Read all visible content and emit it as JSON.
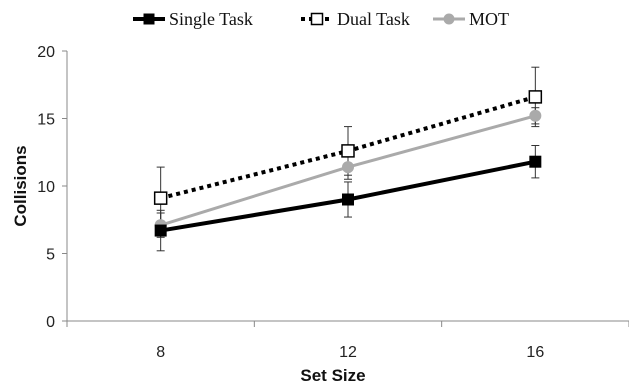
{
  "chart_data": {
    "type": "line",
    "x": [
      8,
      12,
      16
    ],
    "xlabel": "Set Size",
    "ylabel": "Collisions",
    "ylim": [
      0,
      20
    ],
    "yticks": [
      0,
      5,
      10,
      15,
      20
    ],
    "xtick_labels": [
      "8",
      "12",
      "16"
    ],
    "ytick_labels": [
      "0",
      "5",
      "10",
      "15",
      "20"
    ],
    "grid": false,
    "legend_position": "top",
    "series": [
      {
        "name": "Single Task",
        "values": [
          6.7,
          9.0,
          11.8
        ],
        "error": [
          1.5,
          1.3,
          1.2
        ],
        "color": "#000000",
        "line_style": "solid",
        "marker": "filled-square"
      },
      {
        "name": "Dual Task",
        "values": [
          9.1,
          12.6,
          16.6
        ],
        "error": [
          2.3,
          1.8,
          2.2
        ],
        "color": "#000000",
        "line_style": "dotted",
        "marker": "open-square"
      },
      {
        "name": "MOT",
        "values": [
          7.1,
          11.4,
          15.2
        ],
        "error": [
          0.9,
          0.9,
          0.6
        ],
        "color": "#aaaaaa",
        "line_style": "solid",
        "marker": "filled-circle"
      }
    ]
  }
}
